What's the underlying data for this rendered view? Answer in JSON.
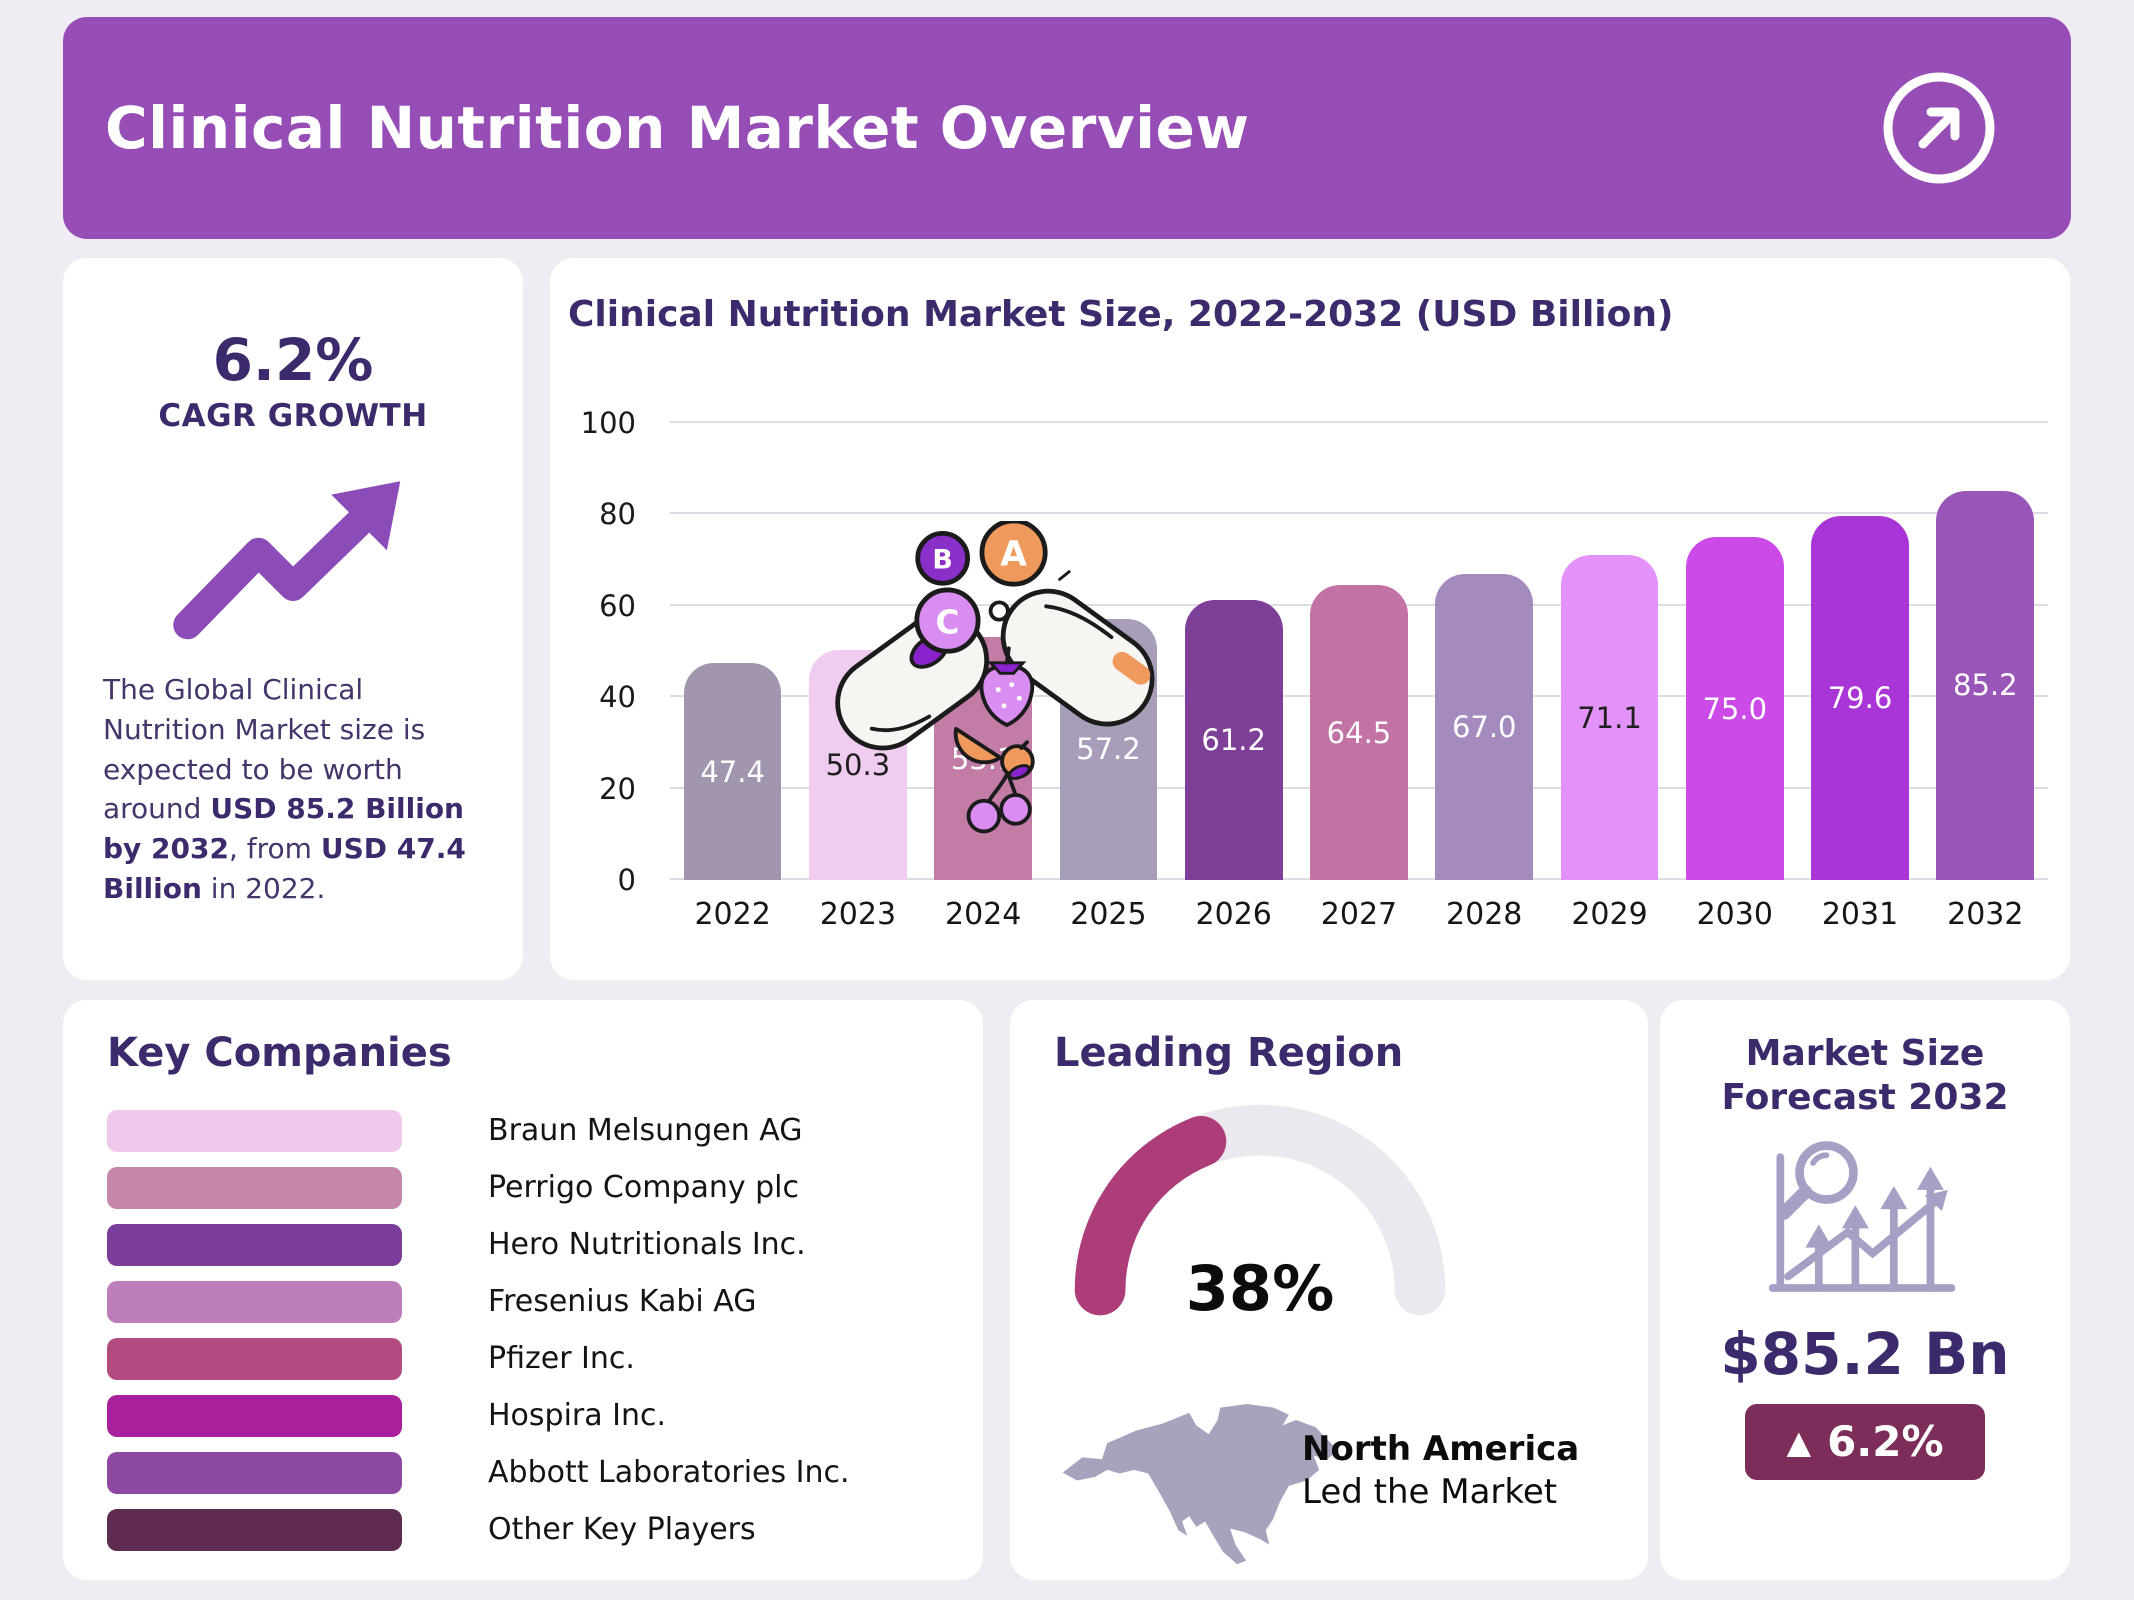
{
  "header": {
    "title": "Clinical Nutrition Market Overview"
  },
  "cagr_card": {
    "value": "6.2%",
    "label": "CAGR GROWTH",
    "description_segments": [
      {
        "text": "The Global Clinical Nutrition Market size is expected to be worth around ",
        "bold": false
      },
      {
        "text": "USD  85.2 Billion by 2032",
        "bold": true
      },
      {
        "text": ", from ",
        "bold": false
      },
      {
        "text": "USD 47.4 Billion",
        "bold": true
      },
      {
        "text": " in 2022.",
        "bold": false
      }
    ]
  },
  "chart_card": {
    "title": "Clinical Nutrition Market Size, 2022-2032 (USD Billion)"
  },
  "chart_data": {
    "type": "bar",
    "title": "Clinical Nutrition Market Size, 2022-2032 (USD Billion)",
    "categories": [
      "2022",
      "2023",
      "2024",
      "2025",
      "2026",
      "2027",
      "2028",
      "2029",
      "2030",
      "2031",
      "2032"
    ],
    "values": [
      47.4,
      50.3,
      53.1,
      57.2,
      61.2,
      64.5,
      67.0,
      71.1,
      75.0,
      79.6,
      85.2
    ],
    "unit": "USD Billion",
    "xlabel": "",
    "ylabel": "",
    "ylim": [
      0,
      100
    ],
    "yticks": [
      0,
      20,
      40,
      60,
      80,
      100
    ],
    "grid": true,
    "legend": false,
    "bar_colors": [
      "#a295ae",
      "#f0cdf0",
      "#c27ca6",
      "#a89db9",
      "#7e3f98",
      "#c272a4",
      "#a58bbd",
      "#e392fa",
      "#cc4ae8",
      "#aa35d6",
      "#9a55b8"
    ],
    "label_colors": [
      "#ffffff",
      "#1f1f1f",
      "#ffffff",
      "#ffffff",
      "#ffffff",
      "#ffffff",
      "#ffffff",
      "#1f1f1f",
      "#ffffff",
      "#ffffff",
      "#ffffff"
    ]
  },
  "vitamin_illustration": {
    "labels": [
      "B",
      "A",
      "C"
    ]
  },
  "key_companies": {
    "title": "Key Companies",
    "items": [
      {
        "name": "Braun Melsungen AG",
        "color": "#eec9ec"
      },
      {
        "name": "Perrigo Company plc",
        "color": "#c687ac"
      },
      {
        "name": "Hero Nutritionals Inc.",
        "color": "#7a3d99"
      },
      {
        "name": "Fresenius Kabi AG",
        "color": "#bd7cba"
      },
      {
        "name": "Pfizer Inc.",
        "color": "#b34b80"
      },
      {
        "name": "Hospira Inc.",
        "color": "#a9209c"
      },
      {
        "name": "Abbott Laboratories Inc.",
        "color": "#8d48a1"
      },
      {
        "name": "Other Key Players",
        "color": "#5e2b51"
      }
    ]
  },
  "leading_region": {
    "title": "Leading Region",
    "share_percent": 38,
    "share_label": "38%",
    "region_name": "North America",
    "region_subtitle": "Led the Market",
    "gauge_fill_color": "#ac3d79",
    "gauge_track_color": "#ebe8ef"
  },
  "forecast_card": {
    "title": "Market Size Forecast 2032",
    "value": "$85.2 Bn",
    "up_arrow": "▲",
    "growth_label": "6.2%",
    "badge_color": "#7c2d59"
  },
  "theme": {
    "page_bg": "#efedf3",
    "card_bg": "#ffffff",
    "header_bg": "#964db6",
    "heading_color": "#3d2a6d",
    "paragraph_color": "#46356b",
    "accent_purple": "#8b4cb8",
    "muted_icon_color": "#a79fc4",
    "map_color": "#a9a2bd",
    "gridline_color": "#dfdbe5"
  }
}
